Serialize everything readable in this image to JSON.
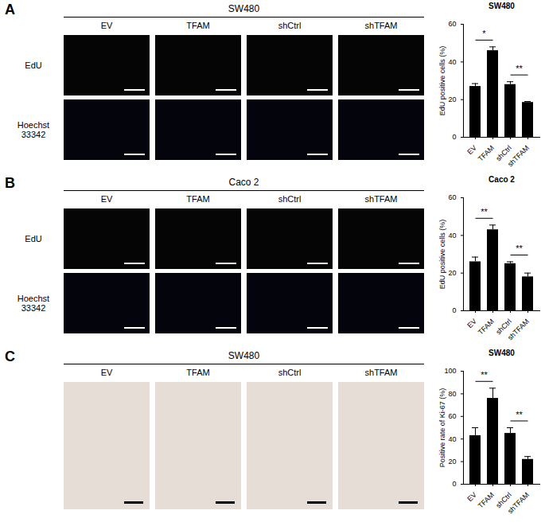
{
  "chart_data": [
    {
      "type": "bar",
      "title": "SW480",
      "y_label": "EdU positive cells (%)",
      "categories": [
        "EV",
        "TFAM",
        "shCtrl",
        "shTFAM"
      ],
      "values": [
        27,
        46,
        28,
        18.5
      ],
      "errors": [
        1.5,
        2,
        1.5,
        0.5
      ],
      "color": "#000000",
      "ylim": [
        0,
        60
      ],
      "yticks": [
        0,
        20,
        40,
        60
      ],
      "significance": [
        {
          "from": "EV",
          "to": "TFAM",
          "label": "*"
        },
        {
          "from": "shCtrl",
          "to": "shTFAM",
          "label": "**"
        }
      ]
    },
    {
      "type": "bar",
      "title": "Caco 2",
      "y_label": "EdU positive cells (%)",
      "categories": [
        "EV",
        "TFAM",
        "shCtrl",
        "shTFAM"
      ],
      "values": [
        26,
        43,
        25,
        18
      ],
      "errors": [
        2.5,
        2.5,
        1,
        2
      ],
      "color": "#000000",
      "ylim": [
        0,
        60
      ],
      "yticks": [
        0,
        20,
        40,
        60
      ],
      "significance": [
        {
          "from": "EV",
          "to": "TFAM",
          "label": "**"
        },
        {
          "from": "shCtrl",
          "to": "shTFAM",
          "label": "**"
        }
      ]
    },
    {
      "type": "bar",
      "title": "SW480",
      "y_label": "Positive rate of Ki-67 (%)",
      "categories": [
        "EV",
        "TFAM",
        "shCtrl",
        "shTFAM"
      ],
      "values": [
        43,
        76,
        45,
        22
      ],
      "errors": [
        7,
        9,
        5,
        2.5
      ],
      "color": "#000000",
      "ylim": [
        0,
        100
      ],
      "yticks": [
        0,
        20,
        40,
        60,
        80,
        100
      ],
      "significance": [
        {
          "from": "EV",
          "to": "TFAM",
          "label": "**"
        },
        {
          "from": "shCtrl",
          "to": "shTFAM",
          "label": "**"
        }
      ]
    }
  ],
  "panels": [
    {
      "letter": "A",
      "title": "SW480",
      "columns": [
        "EV",
        "TFAM",
        "shCtrl",
        "shTFAM"
      ],
      "rows": [
        "EdU",
        "Hoechst 33342"
      ]
    },
    {
      "letter": "B",
      "title": "Caco 2",
      "columns": [
        "EV",
        "TFAM",
        "shCtrl",
        "shTFAM"
      ],
      "rows": [
        "EdU",
        "Hoechst 33342"
      ]
    },
    {
      "letter": "C",
      "title": "SW480",
      "columns": [
        "EV",
        "TFAM",
        "shCtrl",
        "shTFAM"
      ],
      "rows": []
    }
  ]
}
